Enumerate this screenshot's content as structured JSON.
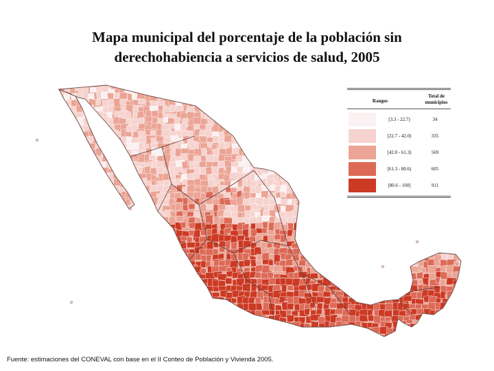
{
  "title": {
    "line1": "Mapa municipal del porcentaje de la población sin",
    "line2": "derechohabiencia a servicios de salud, 2005"
  },
  "legend": {
    "header_ranges": "Rangos",
    "header_total_line1": "Total de",
    "header_total_line2": "municipios",
    "items": [
      {
        "range": "[3.3 - 22.7)",
        "count": "34",
        "color": "#fbf1f3"
      },
      {
        "range": "[22.7 - 42.0)",
        "count": "335",
        "color": "#f6d3cf"
      },
      {
        "range": "[42.0 - 61.3)",
        "count": "569",
        "color": "#eba495"
      },
      {
        "range": "[61.3 - 80.6)",
        "count": "605",
        "color": "#dc6a57"
      },
      {
        "range": "[80.6 - 100]",
        "count": "911",
        "color": "#cc3a24"
      }
    ]
  },
  "source": "Fuente: estimaciones del CONEVAL con base en el II Conteo de Población y Vivienda 2005.",
  "map_colors": {
    "outline": "#6b4a45",
    "state_border": "#5a3a35"
  }
}
